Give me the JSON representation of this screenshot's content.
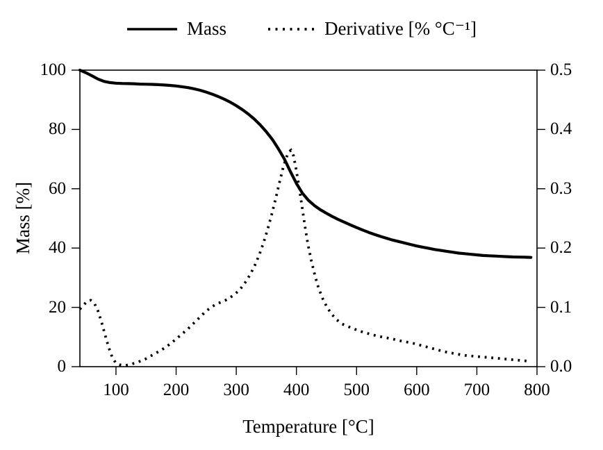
{
  "colors": {
    "foreground": "#000000",
    "background": "#ffffff"
  },
  "legend": {
    "items": [
      {
        "label": "Mass",
        "style": "solid"
      },
      {
        "label": "Derivative [% °C⁻¹]",
        "style": "dotted"
      }
    ]
  },
  "chart_data": {
    "type": "line",
    "title": "",
    "xlabel": "Temperature [°C]",
    "ylabel_left": "Mass [%]",
    "ylabel_right": "Derivative [% °C⁻¹]",
    "xlim": [
      40,
      800
    ],
    "ylim_left": [
      0,
      100
    ],
    "ylim_right": [
      0,
      0.5
    ],
    "x_ticks": [
      100,
      200,
      300,
      400,
      500,
      600,
      700,
      800
    ],
    "y_ticks_left": [
      0,
      20,
      40,
      60,
      80,
      100
    ],
    "y_ticks_right": [
      0.0,
      0.1,
      0.2,
      0.3,
      0.4,
      0.5
    ],
    "y_tick_labels_right": [
      "0.0",
      "0.1",
      "0.2",
      "0.3",
      "0.4",
      "0.5"
    ],
    "grid": false,
    "legend_position": "top-center",
    "series": [
      {
        "name": "Mass",
        "axis": "left",
        "style": "solid",
        "x": [
          40,
          50,
          60,
          70,
          80,
          90,
          100,
          110,
          120,
          130,
          140,
          150,
          160,
          170,
          180,
          190,
          200,
          210,
          220,
          230,
          240,
          250,
          260,
          270,
          280,
          290,
          300,
          310,
          320,
          330,
          340,
          350,
          360,
          370,
          380,
          390,
          400,
          410,
          420,
          430,
          440,
          450,
          460,
          470,
          480,
          490,
          500,
          510,
          520,
          530,
          540,
          550,
          560,
          570,
          580,
          590,
          600,
          610,
          620,
          630,
          640,
          650,
          660,
          670,
          680,
          690,
          700,
          710,
          720,
          730,
          740,
          750,
          760,
          770,
          780,
          790
        ],
        "y": [
          100.0,
          99.1,
          98.1,
          97.0,
          96.2,
          95.8,
          95.6,
          95.5,
          95.45,
          95.4,
          95.3,
          95.25,
          95.2,
          95.1,
          95.0,
          94.85,
          94.65,
          94.4,
          94.1,
          93.7,
          93.2,
          92.6,
          91.9,
          91.1,
          90.2,
          89.2,
          88.0,
          86.7,
          85.2,
          83.5,
          81.5,
          79.2,
          76.6,
          73.5,
          70.0,
          65.8,
          61.8,
          58.5,
          56.1,
          54.3,
          52.9,
          51.7,
          50.6,
          49.6,
          48.7,
          47.8,
          46.9,
          46.1,
          45.3,
          44.6,
          43.9,
          43.3,
          42.7,
          42.2,
          41.7,
          41.2,
          40.7,
          40.3,
          39.9,
          39.5,
          39.2,
          38.9,
          38.6,
          38.3,
          38.1,
          37.9,
          37.7,
          37.5,
          37.4,
          37.3,
          37.2,
          37.1,
          37.0,
          36.95,
          36.9,
          36.85
        ]
      },
      {
        "name": "Derivative",
        "axis": "right",
        "style": "dotted",
        "x": [
          40,
          46,
          52,
          58,
          64,
          70,
          76,
          82,
          88,
          94,
          100,
          107,
          114,
          121,
          128,
          135,
          142,
          149,
          156,
          163,
          170,
          177,
          184,
          191,
          198,
          205,
          212,
          219,
          226,
          233,
          240,
          247,
          254,
          261,
          268,
          275,
          282,
          289,
          296,
          303,
          310,
          317,
          324,
          331,
          338,
          345,
          352,
          359,
          366,
          372,
          378,
          383,
          387,
          391,
          395,
          399,
          404,
          409,
          414,
          419,
          425,
          431,
          437,
          444,
          451,
          459,
          467,
          476,
          485,
          495,
          505,
          515,
          526,
          537,
          548,
          559,
          570,
          581,
          592,
          603,
          614,
          625,
          636,
          647,
          658,
          669,
          680,
          691,
          702,
          713,
          724,
          735,
          746,
          757,
          768,
          779,
          790
        ],
        "y": [
          0.097,
          0.104,
          0.11,
          0.112,
          0.107,
          0.094,
          0.075,
          0.053,
          0.032,
          0.015,
          0.006,
          0.003,
          0.002,
          0.003,
          0.005,
          0.007,
          0.01,
          0.013,
          0.017,
          0.021,
          0.025,
          0.029,
          0.034,
          0.039,
          0.045,
          0.051,
          0.057,
          0.063,
          0.07,
          0.077,
          0.084,
          0.091,
          0.097,
          0.102,
          0.106,
          0.109,
          0.112,
          0.116,
          0.121,
          0.127,
          0.135,
          0.145,
          0.157,
          0.171,
          0.188,
          0.208,
          0.231,
          0.257,
          0.285,
          0.311,
          0.336,
          0.352,
          0.362,
          0.365,
          0.356,
          0.336,
          0.306,
          0.272,
          0.238,
          0.207,
          0.178,
          0.153,
          0.132,
          0.114,
          0.1,
          0.088,
          0.079,
          0.072,
          0.068,
          0.064,
          0.06,
          0.057,
          0.054,
          0.051,
          0.049,
          0.047,
          0.044,
          0.042,
          0.04,
          0.037,
          0.034,
          0.031,
          0.028,
          0.025,
          0.023,
          0.021,
          0.019,
          0.018,
          0.017,
          0.016,
          0.015,
          0.014,
          0.013,
          0.012,
          0.011,
          0.01,
          0.009
        ]
      }
    ]
  }
}
